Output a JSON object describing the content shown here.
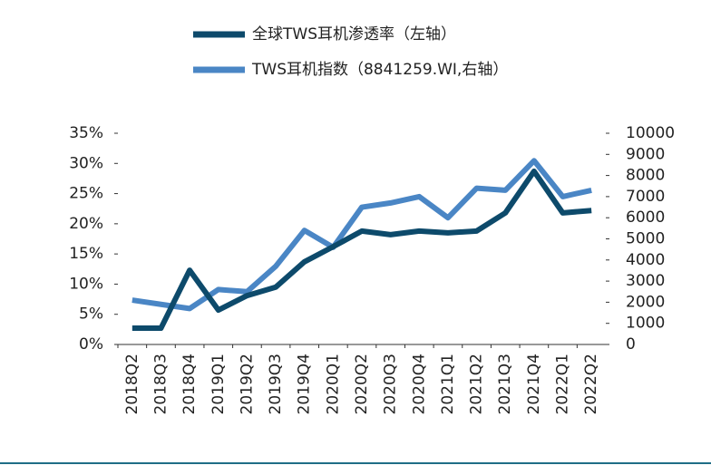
{
  "chart_data": {
    "type": "line",
    "categories": [
      "2018Q2",
      "2018Q3",
      "2018Q4",
      "2019Q1",
      "2019Q2",
      "2019Q3",
      "2019Q4",
      "2020Q1",
      "2020Q2",
      "2020Q3",
      "2020Q4",
      "2021Q1",
      "2021Q2",
      "2021Q3",
      "2021Q4",
      "2022Q1",
      "2022Q2"
    ],
    "series": [
      {
        "name": "全球TWS耳机渗透率（左轴）",
        "color": "#0d4a6b",
        "values": [
          2.7,
          2.7,
          12.3,
          5.7,
          8.1,
          9.5,
          13.7,
          16.2,
          18.8,
          18.2,
          18.8,
          18.5,
          18.8,
          21.8,
          28.7,
          21.8,
          22.2
        ]
      },
      {
        "name": "TWS耳机指数（8841259.WI,右轴）",
        "color": "#4a86c5",
        "axis": "y2",
        "values": [
          2100,
          1900,
          1700,
          2600,
          2500,
          3700,
          5400,
          4600,
          6500,
          6700,
          7000,
          6000,
          7400,
          7300,
          8700,
          7000,
          7300
        ]
      }
    ],
    "ylim": [
      0,
      35
    ],
    "yticks": [
      {
        "value": 0,
        "label": "0%"
      },
      {
        "value": 5,
        "label": "5%"
      },
      {
        "value": 10,
        "label": "10%"
      },
      {
        "value": 15,
        "label": "15%"
      },
      {
        "value": 20,
        "label": "20%"
      },
      {
        "value": 25,
        "label": "25%"
      },
      {
        "value": 30,
        "label": "30%"
      },
      {
        "value": 35,
        "label": "35%"
      }
    ],
    "y2lim": [
      0,
      10000
    ],
    "y2ticks": [
      0,
      1000,
      2000,
      3000,
      4000,
      5000,
      6000,
      7000,
      8000,
      9000,
      10000
    ]
  }
}
